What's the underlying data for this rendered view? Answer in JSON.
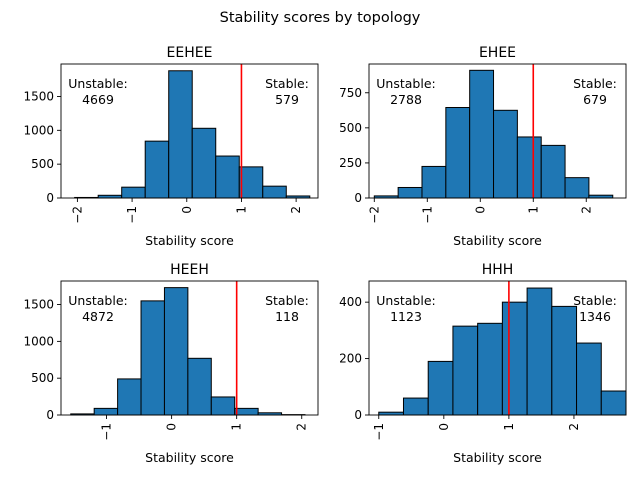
{
  "figure": {
    "suptitle": "Stability scores by topology",
    "bar_color": "#1f77b4",
    "bar_edge_color": "#000000",
    "threshold_color": "#ff0000"
  },
  "chart_data": [
    {
      "type": "bar",
      "title": "EEHEE",
      "xlabel": "Stability score",
      "ylabel": "",
      "xlim": [
        -2.3,
        2.4
      ],
      "ylim": [
        0,
        1980
      ],
      "xticks": [
        -2,
        -1,
        0,
        1,
        2
      ],
      "xtick_labels": [
        "−2",
        "−1",
        "0",
        "1",
        "2"
      ],
      "yticks": [
        0,
        500,
        1000,
        1500
      ],
      "ytick_labels": [
        "0",
        "500",
        "1000",
        "1500"
      ],
      "bin_edges": [
        -2.05,
        -1.62,
        -1.19,
        -0.76,
        -0.33,
        0.1,
        0.53,
        0.96,
        1.39,
        1.82,
        2.25
      ],
      "values": [
        8,
        40,
        160,
        840,
        1880,
        1030,
        620,
        460,
        175,
        30
      ],
      "threshold": 1,
      "unstable_label": "Unstable:",
      "unstable_count": "4669",
      "stable_label": "Stable:",
      "stable_count": "579"
    },
    {
      "type": "bar",
      "title": "EHEE",
      "xlabel": "Stability score",
      "ylabel": "",
      "xlim": [
        -2.1,
        2.75
      ],
      "ylim": [
        0,
        955
      ],
      "xticks": [
        -2,
        -1,
        0,
        1,
        2
      ],
      "xtick_labels": [
        "−2",
        "−1",
        "0",
        "1",
        "2"
      ],
      "yticks": [
        0,
        250,
        500,
        750
      ],
      "ytick_labels": [
        "0",
        "250",
        "500",
        "750"
      ],
      "bin_edges": [
        -2.0,
        -1.55,
        -1.1,
        -0.65,
        -0.2,
        0.25,
        0.7,
        1.15,
        1.6,
        2.05,
        2.5
      ],
      "values": [
        15,
        75,
        225,
        645,
        910,
        625,
        435,
        375,
        145,
        20
      ],
      "threshold": 1,
      "unstable_label": "Unstable:",
      "unstable_count": "2788",
      "stable_label": "Stable:",
      "stable_count": "679"
    },
    {
      "type": "bar",
      "title": "HEEH",
      "xlabel": "Stability score",
      "ylabel": "",
      "xlim": [
        -1.7,
        2.25
      ],
      "ylim": [
        0,
        1820
      ],
      "xticks": [
        -1,
        0,
        1,
        2
      ],
      "xtick_labels": [
        "−1",
        "0",
        "1",
        "2"
      ],
      "yticks": [
        0,
        500,
        1000,
        1500
      ],
      "ytick_labels": [
        "0",
        "500",
        "1000",
        "1500"
      ],
      "bin_edges": [
        -1.55,
        -1.19,
        -0.83,
        -0.47,
        -0.11,
        0.25,
        0.61,
        0.97,
        1.33,
        1.69,
        2.05
      ],
      "values": [
        15,
        90,
        490,
        1550,
        1730,
        770,
        245,
        90,
        30,
        5
      ],
      "threshold": 1,
      "unstable_label": "Unstable:",
      "unstable_count": "4872",
      "stable_label": "Stable:",
      "stable_count": "118"
    },
    {
      "type": "bar",
      "title": "HHH",
      "xlabel": "Stability score",
      "ylabel": "",
      "xlim": [
        -1.15,
        2.8
      ],
      "ylim": [
        0,
        475
      ],
      "xticks": [
        -1,
        0,
        1,
        2
      ],
      "xtick_labels": [
        "−1",
        "0",
        "1",
        "2"
      ],
      "yticks": [
        0,
        200,
        400
      ],
      "ytick_labels": [
        "0",
        "200",
        "400"
      ],
      "bin_edges": [
        -1.0,
        -0.62,
        -0.24,
        0.14,
        0.52,
        0.9,
        1.28,
        1.66,
        2.04,
        2.42,
        2.8
      ],
      "values": [
        10,
        60,
        190,
        315,
        325,
        400,
        450,
        385,
        255,
        85
      ],
      "threshold": 1,
      "unstable_label": "Unstable:",
      "unstable_count": "1123",
      "stable_label": "Stable:",
      "stable_count": "1346"
    }
  ]
}
